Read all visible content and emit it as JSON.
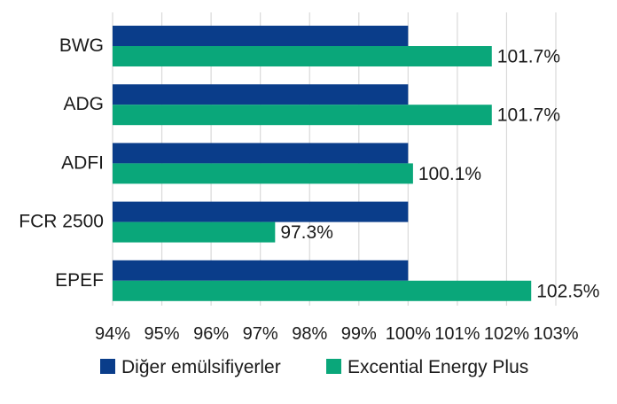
{
  "chart_data": {
    "type": "bar",
    "orientation": "horizontal",
    "categories": [
      "BWG",
      "ADG",
      "ADFI",
      "FCR 2500",
      "EPEF"
    ],
    "series": [
      {
        "name": "Diğer emülsifiyerler",
        "color": "#0a3d8a",
        "values": [
          100,
          100,
          100,
          100,
          100
        ]
      },
      {
        "name": "Excential Energy Plus",
        "color": "#0aa77a",
        "values": [
          101.7,
          101.7,
          100.1,
          97.3,
          102.5
        ],
        "labels": [
          "101.7%",
          "101.7%",
          "100.1%",
          "97.3%",
          "102.5%"
        ]
      }
    ],
    "xlim": [
      94,
      103
    ],
    "xticks": [
      94,
      95,
      96,
      97,
      98,
      99,
      100,
      101,
      102,
      103
    ],
    "xtick_labels": [
      "94%",
      "95%",
      "96%",
      "97%",
      "98%",
      "99%",
      "100%",
      "101%",
      "102%",
      "103%"
    ],
    "grid": true,
    "legend_position": "bottom"
  }
}
